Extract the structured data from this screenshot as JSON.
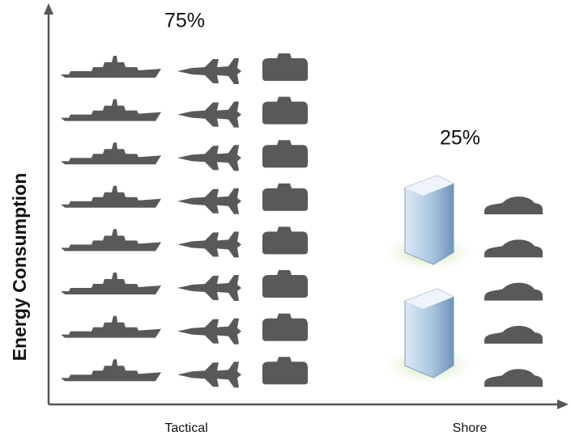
{
  "chart_data": {
    "type": "pictogram",
    "ylabel": "Energy Consumption",
    "categories": [
      "Tactical",
      "Shore"
    ],
    "values": [
      75,
      25
    ],
    "value_labels": [
      "75%",
      "25%"
    ],
    "color": "#58595b"
  }
}
